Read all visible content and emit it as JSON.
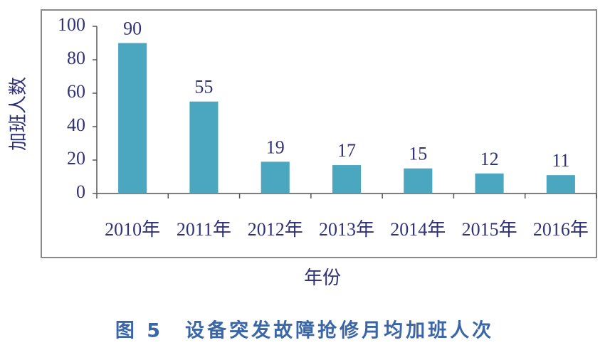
{
  "chart_data": {
    "type": "bar",
    "caption": "图 5　设备突发故障抢修月均加班人次",
    "x_label": "年份",
    "y_label": "加班人数",
    "categories": [
      "2010年",
      "2011年",
      "2012年",
      "2013年",
      "2014年",
      "2015年",
      "2016年"
    ],
    "values": [
      90,
      55,
      19,
      17,
      15,
      12,
      11
    ],
    "color": "#4ba6c0",
    "ylim": [
      0,
      100
    ],
    "yticks": [
      0,
      20,
      40,
      60,
      80,
      100
    ],
    "grid": false
  }
}
